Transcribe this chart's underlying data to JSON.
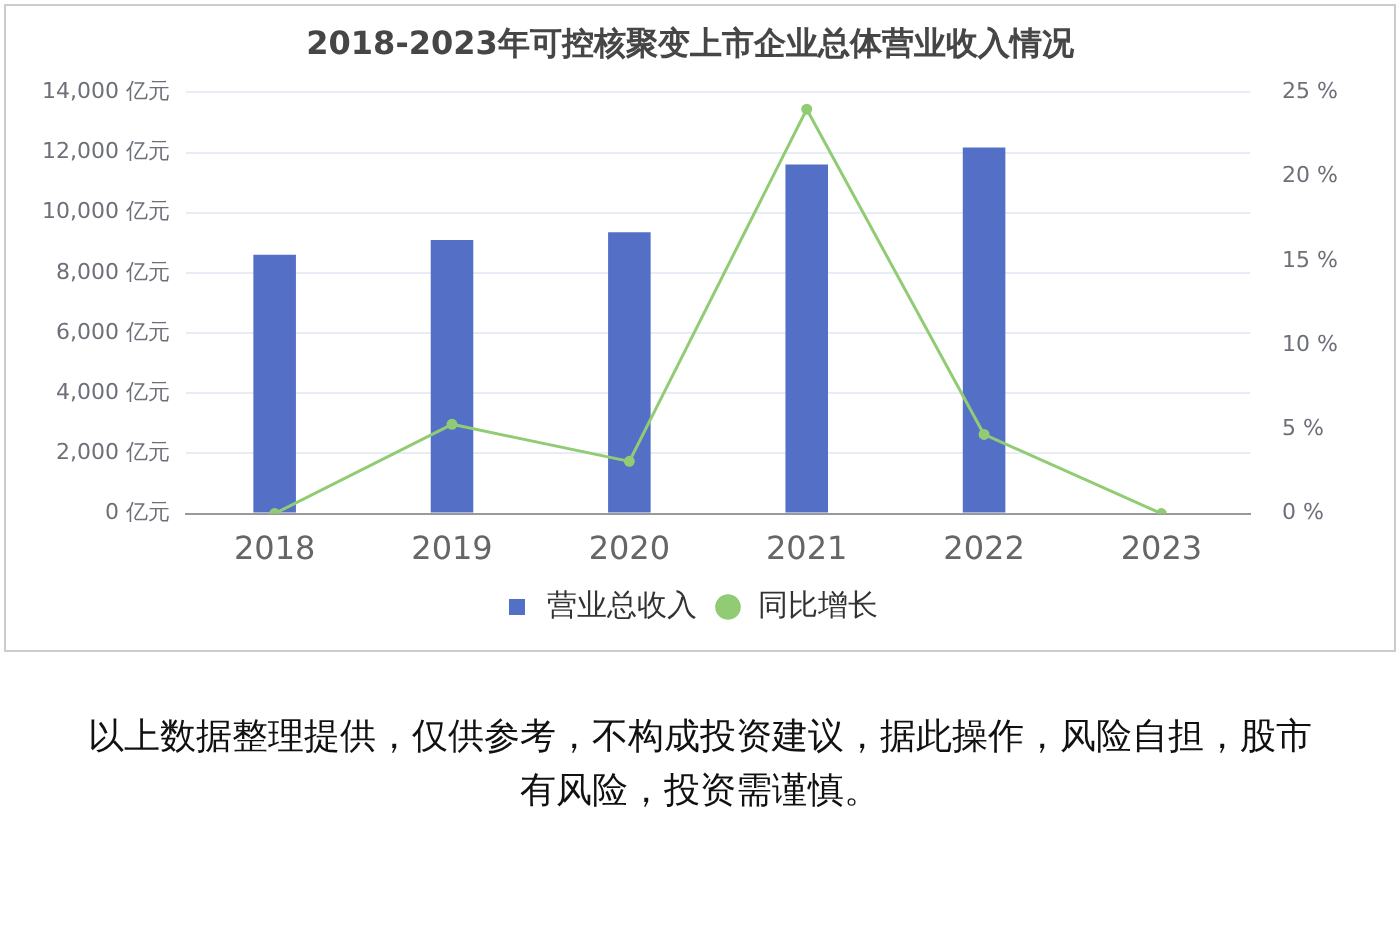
{
  "chart_data": {
    "type": "bar",
    "title": "2018-2023年可控核聚变上市企业总体营业收入情况",
    "categories": [
      "2018",
      "2019",
      "2020",
      "2021",
      "2022",
      "2023"
    ],
    "series": [
      {
        "name": "营业总收入",
        "color": "#5470c6",
        "values": [
          8600,
          9090,
          9350,
          11600,
          12170,
          null
        ]
      },
      {
        "name": "同比增长",
        "type": "line",
        "axis": "y2",
        "color": "#91cc75",
        "marker": "circle",
        "values": [
          0,
          5.3,
          3.1,
          24.0,
          4.7,
          0
        ]
      }
    ],
    "ylim": [
      0,
      14000
    ],
    "yticks": [
      {
        "value": 0,
        "label": "0 亿元"
      },
      {
        "value": 2000,
        "label": "2,000 亿元"
      },
      {
        "value": 4000,
        "label": "4,000 亿元"
      },
      {
        "value": 6000,
        "label": "6,000 亿元"
      },
      {
        "value": 8000,
        "label": "8,000 亿元"
      },
      {
        "value": 10000,
        "label": "10,000 亿元"
      },
      {
        "value": 12000,
        "label": "12,000 亿元"
      },
      {
        "value": 14000,
        "label": "14,000 亿元"
      }
    ],
    "y2lim": [
      0,
      25
    ],
    "y2ticks": [
      {
        "value": 0,
        "label": "0 %"
      },
      {
        "value": 5,
        "label": "5 %"
      },
      {
        "value": 10,
        "label": "10 %"
      },
      {
        "value": 15,
        "label": "15 %"
      },
      {
        "value": 20,
        "label": "20 %"
      },
      {
        "value": 25,
        "label": "25 %"
      }
    ],
    "grid": "y",
    "legend": "bottom",
    "annotations": [
      "以上数据整理提供，仅供参考，不构成投资建议，据此操作，风险自担，股市有风险，投资需谨慎。"
    ]
  }
}
